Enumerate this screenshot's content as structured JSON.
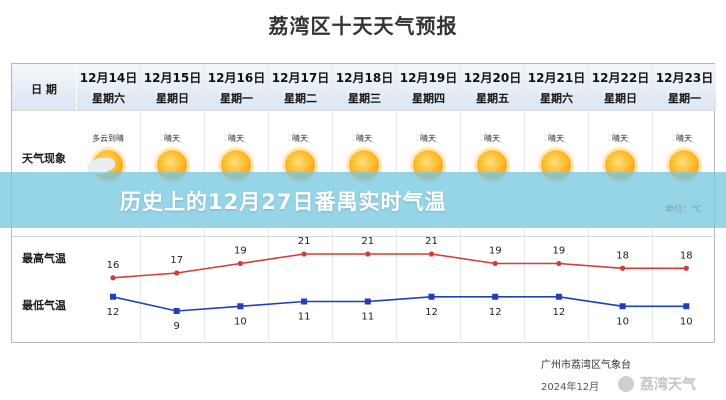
{
  "page": {
    "title": "荔湾区十天天气预报",
    "overlay_title": "历史上的12月27日番禺实时气温",
    "unit_label": "单位：℃",
    "source": "广州市荔湾区气象台",
    "issue_date": "2024年12月",
    "watermark": "荔湾天气"
  },
  "table": {
    "row_labels": {
      "date": "日 期",
      "weather": "天气现象",
      "high": "最高气温",
      "low": "最低气温"
    },
    "days": [
      {
        "date": "12月14日",
        "week": "星期六",
        "weather": "多云到晴",
        "icon": "cloud-sun-icon"
      },
      {
        "date": "12月15日",
        "week": "星期日",
        "weather": "晴天",
        "icon": "sun-icon"
      },
      {
        "date": "12月16日",
        "week": "星期一",
        "weather": "晴天",
        "icon": "sun-icon"
      },
      {
        "date": "12月17日",
        "week": "星期二",
        "weather": "晴天",
        "icon": "sun-icon"
      },
      {
        "date": "12月18日",
        "week": "星期三",
        "weather": "晴天",
        "icon": "sun-icon"
      },
      {
        "date": "12月19日",
        "week": "星期四",
        "weather": "晴天",
        "icon": "sun-icon"
      },
      {
        "date": "12月20日",
        "week": "星期五",
        "weather": "晴天",
        "icon": "sun-icon"
      },
      {
        "date": "12月21日",
        "week": "星期六",
        "weather": "晴天",
        "icon": "sun-icon"
      },
      {
        "date": "12月22日",
        "week": "星期日",
        "weather": "晴天",
        "icon": "sun-icon"
      },
      {
        "date": "12月23日",
        "week": "星期一",
        "weather": "晴天",
        "icon": "sun-icon"
      }
    ]
  },
  "colors": {
    "high_line": "#d63b3b",
    "low_line": "#1f3fbf"
  },
  "chart_data": {
    "type": "line",
    "title": "",
    "xlabel": "",
    "ylabel": "",
    "categories": [
      "12月14日",
      "12月15日",
      "12月16日",
      "12月17日",
      "12月18日",
      "12月19日",
      "12月20日",
      "12月21日",
      "12月22日",
      "12月23日"
    ],
    "series": [
      {
        "name": "最高气温",
        "values": [
          16,
          17,
          19,
          21,
          21,
          21,
          19,
          19,
          18,
          18
        ]
      },
      {
        "name": "最低气温",
        "values": [
          12,
          9,
          10,
          11,
          11,
          12,
          12,
          12,
          10,
          10
        ]
      }
    ],
    "ylim": [
      9,
      21
    ],
    "grid": false,
    "legend": "none"
  }
}
